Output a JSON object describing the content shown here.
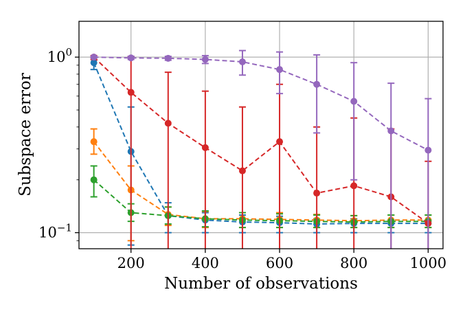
{
  "chart_data": {
    "type": "line",
    "title": "",
    "xlabel": "Number of observations",
    "ylabel": "Subspace error",
    "yscale": "log",
    "xlim": [
      60,
      1040
    ],
    "ylim": [
      0.081,
      1.6
    ],
    "grid": true,
    "legend": "none",
    "x_ticks": [
      200,
      400,
      600,
      800,
      1000
    ],
    "y_ticks": [
      {
        "value": 0.1,
        "base": "10",
        "exp": "−1"
      },
      {
        "value": 1.0,
        "base": "10",
        "exp": "0"
      }
    ],
    "x": [
      100,
      200,
      300,
      400,
      500,
      600,
      700,
      800,
      900,
      1000
    ],
    "series": [
      {
        "color": "#1f77b4",
        "values": [
          0.93,
          0.29,
          0.125,
          0.118,
          0.115,
          0.114,
          0.112,
          0.113,
          0.113,
          0.113
        ],
        "err_low": [
          0.85,
          0.085,
          0.1,
          0.1,
          0.1,
          0.1,
          0.1,
          0.1,
          0.1,
          0.1
        ],
        "err_high": [
          1.0,
          0.52,
          0.148,
          0.13,
          0.126,
          0.124,
          0.12,
          0.12,
          0.118,
          0.118
        ]
      },
      {
        "color": "#ff7f0e",
        "values": [
          0.33,
          0.175,
          0.127,
          0.12,
          0.12,
          0.119,
          0.118,
          0.117,
          0.118,
          0.118
        ],
        "err_low": [
          0.28,
          0.09,
          0.11,
          0.107,
          0.107,
          0.107,
          0.107,
          0.107,
          0.107,
          0.107
        ],
        "err_high": [
          0.39,
          0.24,
          0.14,
          0.132,
          0.13,
          0.13,
          0.127,
          0.125,
          0.126,
          0.126
        ]
      },
      {
        "color": "#2ca02c",
        "values": [
          0.2,
          0.13,
          0.125,
          0.12,
          0.118,
          0.117,
          0.116,
          0.115,
          0.116,
          0.116
        ],
        "err_low": [
          0.16,
          0.116,
          0.112,
          0.108,
          0.107,
          0.107,
          0.107,
          0.107,
          0.107,
          0.107
        ],
        "err_high": [
          0.24,
          0.146,
          0.14,
          0.133,
          0.13,
          0.128,
          0.126,
          0.125,
          0.126,
          0.126
        ]
      },
      {
        "color": "#d62728",
        "values": [
          1.0,
          0.63,
          0.42,
          0.305,
          0.225,
          0.33,
          0.168,
          0.185,
          0.16,
          0.113
        ],
        "err_low": [
          0.97,
          0.07,
          0.07,
          0.07,
          0.07,
          0.07,
          0.07,
          0.07,
          0.07,
          0.07
        ],
        "err_high": [
          1.02,
          1.01,
          0.82,
          0.64,
          0.52,
          0.7,
          0.4,
          0.45,
          0.39,
          0.255
        ]
      },
      {
        "color": "#9467bd",
        "values": [
          1.0,
          0.99,
          0.985,
          0.97,
          0.94,
          0.85,
          0.7,
          0.56,
          0.38,
          0.295
        ],
        "err_low": [
          0.99,
          0.97,
          0.96,
          0.92,
          0.79,
          0.62,
          0.37,
          0.2,
          0.07,
          0.07
        ],
        "err_high": [
          1.01,
          1.01,
          1.01,
          1.02,
          1.09,
          1.07,
          1.03,
          0.93,
          0.71,
          0.58
        ]
      }
    ]
  }
}
